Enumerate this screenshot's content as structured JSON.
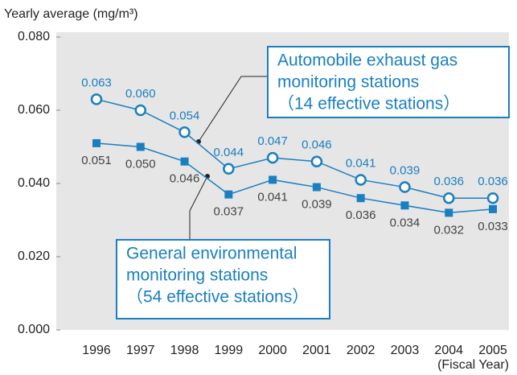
{
  "chart_data": {
    "type": "line",
    "y_axis_label": "Yearly average (mg/m³)",
    "x_axis_label": "(Fiscal Year)",
    "categories": [
      "1996",
      "1997",
      "1998",
      "1999",
      "2000",
      "2001",
      "2002",
      "2003",
      "2004",
      "2005"
    ],
    "ylim": [
      0,
      0.08
    ],
    "yticks": [
      {
        "value": 0,
        "label": "0.000"
      },
      {
        "value": 0.02,
        "label": "0.020"
      },
      {
        "value": 0.04,
        "label": "0.040"
      },
      {
        "value": 0.06,
        "label": "0.060"
      },
      {
        "value": 0.08,
        "label": "0.080"
      }
    ],
    "series": [
      {
        "label": [
          "Automobile exhaust gas",
          "monitoring stations",
          "（14 effective stations）"
        ],
        "color": "#1a7fc1",
        "marker": "circle",
        "values": [
          0.063,
          0.06,
          0.054,
          0.044,
          0.047,
          0.046,
          0.041,
          0.039,
          0.036,
          0.036
        ],
        "value_labels": [
          "0.063",
          "0.060",
          "0.054",
          "0.044",
          "0.047",
          "0.046",
          "0.041",
          "0.039",
          "0.036",
          "0.036"
        ]
      },
      {
        "label": [
          "General environmental",
          "monitoring stations",
          "（54 effective stations）"
        ],
        "color": "#1a7fc1",
        "marker": "square",
        "values": [
          0.051,
          0.05,
          0.046,
          0.037,
          0.041,
          0.039,
          0.036,
          0.034,
          0.032,
          0.033
        ],
        "value_labels": [
          "0.051",
          "0.050",
          "0.046",
          "0.037",
          "0.041",
          "0.039",
          "0.036",
          "0.034",
          "0.032",
          "0.033"
        ]
      }
    ]
  }
}
